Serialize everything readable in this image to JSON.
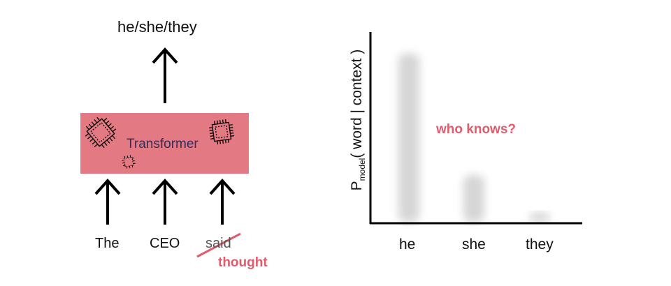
{
  "diagram": {
    "output_label": "he/she/they",
    "model_label": "Transformer",
    "tokens": [
      {
        "text": "The"
      },
      {
        "text": "CEO"
      },
      {
        "text": "said",
        "struck": true,
        "replacement": "thought"
      }
    ]
  },
  "chart_data": {
    "type": "bar",
    "categories": [
      "he",
      "she",
      "they"
    ],
    "values": [
      0.9,
      0.25,
      0.05
    ],
    "ylabel_main": "P",
    "ylabel_sub": "model",
    "ylabel_rest": "( word | context )",
    "annotation": "who knows?",
    "bar_style": "blurred-uncertain",
    "ylim": [
      0,
      1
    ]
  },
  "colors": {
    "accent": "#e05c6c",
    "box_fill": "#e37a83",
    "box_text": "#3a2a55",
    "bar": "#d6d6d6"
  }
}
